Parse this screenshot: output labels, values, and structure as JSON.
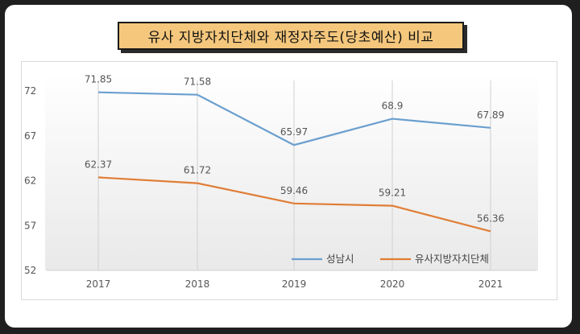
{
  "title": "유사 지방자치단체와 재정자주도(당초예산) 비교",
  "chart_data": {
    "type": "line",
    "categories": [
      "2017",
      "2018",
      "2019",
      "2020",
      "2021"
    ],
    "ylim": [
      52,
      72
    ],
    "yticks": [
      52,
      57,
      62,
      67,
      72
    ],
    "series": [
      {
        "name": "성남시",
        "color": "#6b9fcf",
        "values": [
          71.85,
          71.58,
          65.97,
          68.9,
          67.89
        ],
        "labels": [
          "71.85",
          "71.58",
          "65.97",
          "68.9",
          "67.89"
        ]
      },
      {
        "name": "유사지방자치단체",
        "color": "#e07d35",
        "values": [
          62.37,
          61.72,
          59.46,
          59.21,
          56.36
        ],
        "labels": [
          "62.37",
          "61.72",
          "59.46",
          "59.21",
          "56.36"
        ]
      }
    ],
    "grid": "vertical",
    "legend": "bottom-right"
  }
}
